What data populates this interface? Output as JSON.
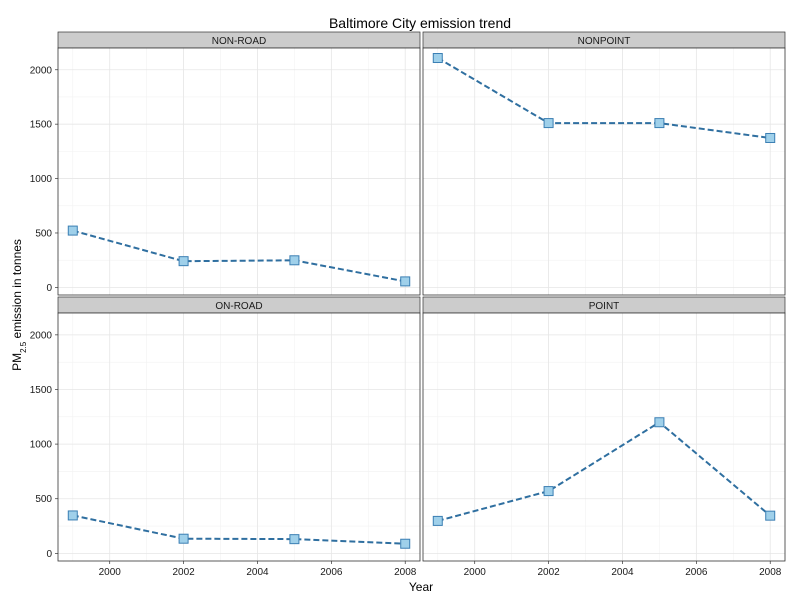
{
  "chart_data": {
    "type": "line",
    "title": "Baltimore City emission trend",
    "xlabel": "Year",
    "ylabel": {
      "prefix": "PM",
      "subscript": "2.5",
      "suffix": " emission in tonnes"
    },
    "x_ticks": [
      2000,
      2002,
      2004,
      2006,
      2008
    ],
    "y_ticks": [
      0,
      500,
      1000,
      1500,
      2000
    ],
    "xlim": [
      1998.6,
      2008.4
    ],
    "ylim": [
      -70,
      2200
    ],
    "grid": true,
    "line_style": "dashed",
    "marker": "square",
    "colors": {
      "line": "#2f6fa0",
      "marker_fill": "#9fd0ea",
      "marker_edge": "#3b7fb3",
      "strip_bg": "#cccccc",
      "panel_border": "#333333",
      "grid": "#e6e6e6"
    },
    "panels": [
      {
        "name": "NON-ROAD",
        "x": [
          1999,
          2002,
          2005,
          2008
        ],
        "y": [
          522,
          241,
          249,
          55
        ]
      },
      {
        "name": "NONPOINT",
        "x": [
          1999,
          2002,
          2005,
          2008
        ],
        "y": [
          2108,
          1510,
          1510,
          1373
        ]
      },
      {
        "name": "ON-ROAD",
        "x": [
          1999,
          2002,
          2005,
          2008
        ],
        "y": [
          347,
          134,
          130,
          88
        ]
      },
      {
        "name": "POINT",
        "x": [
          1999,
          2002,
          2005,
          2008
        ],
        "y": [
          297,
          570,
          1200,
          345
        ]
      }
    ]
  }
}
